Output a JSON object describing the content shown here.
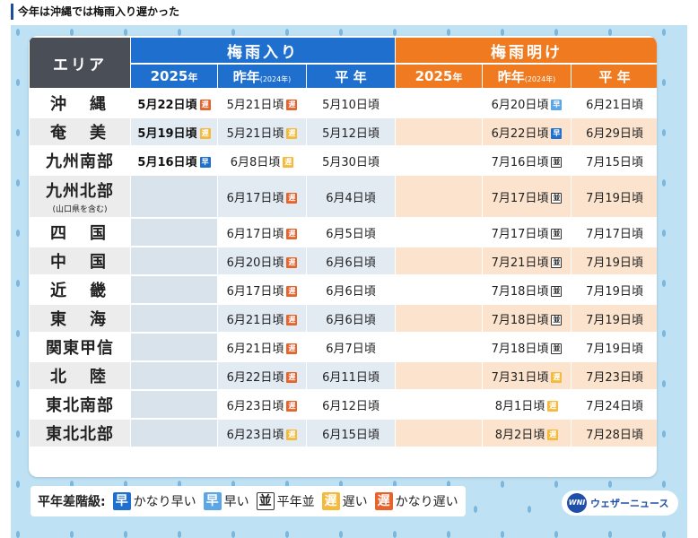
{
  "headline": "今年は沖縄では梅雨入り遅かった",
  "header": {
    "area": "エリア",
    "tsuyuiri": "梅雨入り",
    "tsuyuake": "梅雨明け",
    "y2025": "2025",
    "nen": "年",
    "sakunen": "昨年",
    "sakunen_note": "(2024年)",
    "heinen": "平 年"
  },
  "badges": {
    "haya2": "早",
    "haya": "早",
    "nami": "並",
    "oso": "遅",
    "oso2": "遅"
  },
  "colors": {
    "tsuyuiri_header": "#1f6fcf",
    "tsuyuake_header": "#f07a1f",
    "area_header": "#4a4f57",
    "much_early": "#1f6fcf",
    "early": "#5aa6e6",
    "late": "#f5b93b",
    "much_late": "#e8622b"
  },
  "rows": [
    {
      "area": "沖　縄",
      "area_sub": "",
      "iri_2025": "5月22日頃",
      "iri_2025_badge": "oso2",
      "iri_prev": "5月21日頃",
      "iri_prev_badge": "oso2",
      "iri_norm": "5月10日頃",
      "ake_2025": "",
      "ake_prev": "6月20日頃",
      "ake_prev_badge": "haya",
      "ake_norm": "6月21日頃"
    },
    {
      "area": "奄　美",
      "area_sub": "",
      "iri_2025": "5月19日頃",
      "iri_2025_badge": "oso",
      "iri_prev": "5月21日頃",
      "iri_prev_badge": "oso",
      "iri_norm": "5月12日頃",
      "ake_2025": "",
      "ake_prev": "6月22日頃",
      "ake_prev_badge": "haya2",
      "ake_norm": "6月29日頃"
    },
    {
      "area": "九州南部",
      "area_sub": "",
      "iri_2025": "5月16日頃",
      "iri_2025_badge": "haya2",
      "iri_prev": "6月8日頃",
      "iri_prev_badge": "oso",
      "iri_norm": "5月30日頃",
      "ake_2025": "",
      "ake_prev": "7月16日頃",
      "ake_prev_badge": "nami",
      "ake_norm": "7月15日頃"
    },
    {
      "area": "九州北部",
      "area_sub": "(山口県を含む)",
      "iri_2025": "",
      "iri_2025_badge": "",
      "iri_prev": "6月17日頃",
      "iri_prev_badge": "oso2",
      "iri_norm": "6月4日頃",
      "ake_2025": "",
      "ake_prev": "7月17日頃",
      "ake_prev_badge": "nami",
      "ake_norm": "7月19日頃"
    },
    {
      "area": "四　国",
      "area_sub": "",
      "iri_2025": "",
      "iri_2025_badge": "",
      "iri_prev": "6月17日頃",
      "iri_prev_badge": "oso2",
      "iri_norm": "6月5日頃",
      "ake_2025": "",
      "ake_prev": "7月17日頃",
      "ake_prev_badge": "nami",
      "ake_norm": "7月17日頃"
    },
    {
      "area": "中　国",
      "area_sub": "",
      "iri_2025": "",
      "iri_2025_badge": "",
      "iri_prev": "6月20日頃",
      "iri_prev_badge": "oso2",
      "iri_norm": "6月6日頃",
      "ake_2025": "",
      "ake_prev": "7月21日頃",
      "ake_prev_badge": "nami",
      "ake_norm": "7月19日頃"
    },
    {
      "area": "近　畿",
      "area_sub": "",
      "iri_2025": "",
      "iri_2025_badge": "",
      "iri_prev": "6月17日頃",
      "iri_prev_badge": "oso2",
      "iri_norm": "6月6日頃",
      "ake_2025": "",
      "ake_prev": "7月18日頃",
      "ake_prev_badge": "nami",
      "ake_norm": "7月19日頃"
    },
    {
      "area": "東　海",
      "area_sub": "",
      "iri_2025": "",
      "iri_2025_badge": "",
      "iri_prev": "6月21日頃",
      "iri_prev_badge": "oso2",
      "iri_norm": "6月6日頃",
      "ake_2025": "",
      "ake_prev": "7月18日頃",
      "ake_prev_badge": "nami",
      "ake_norm": "7月19日頃"
    },
    {
      "area": "関東甲信",
      "area_sub": "",
      "iri_2025": "",
      "iri_2025_badge": "",
      "iri_prev": "6月21日頃",
      "iri_prev_badge": "oso2",
      "iri_norm": "6月7日頃",
      "ake_2025": "",
      "ake_prev": "7月18日頃",
      "ake_prev_badge": "nami",
      "ake_norm": "7月19日頃"
    },
    {
      "area": "北　陸",
      "area_sub": "",
      "iri_2025": "",
      "iri_2025_badge": "",
      "iri_prev": "6月22日頃",
      "iri_prev_badge": "oso2",
      "iri_norm": "6月11日頃",
      "ake_2025": "",
      "ake_prev": "7月31日頃",
      "ake_prev_badge": "oso",
      "ake_norm": "7月23日頃"
    },
    {
      "area": "東北南部",
      "area_sub": "",
      "iri_2025": "",
      "iri_2025_badge": "",
      "iri_prev": "6月23日頃",
      "iri_prev_badge": "oso2",
      "iri_norm": "6月12日頃",
      "ake_2025": "",
      "ake_prev": "8月1日頃",
      "ake_prev_badge": "oso",
      "ake_norm": "7月24日頃"
    },
    {
      "area": "東北北部",
      "area_sub": "",
      "iri_2025": "",
      "iri_2025_badge": "",
      "iri_prev": "6月23日頃",
      "iri_prev_badge": "oso",
      "iri_norm": "6月15日頃",
      "ake_2025": "",
      "ake_prev": "8月2日頃",
      "ake_prev_badge": "oso",
      "ake_norm": "7月28日頃"
    }
  ],
  "legend": {
    "title": "平年差階級:",
    "items": [
      {
        "badge": "早",
        "cls": "haya2",
        "label": "かなり早い"
      },
      {
        "badge": "早",
        "cls": "haya",
        "label": "早い"
      },
      {
        "badge": "並",
        "cls": "nami",
        "label": "平年並"
      },
      {
        "badge": "遅",
        "cls": "oso",
        "label": "遅い"
      },
      {
        "badge": "遅",
        "cls": "oso2",
        "label": "かなり遅い"
      }
    ]
  },
  "logo": {
    "mark": "WNI",
    "text": "ウェザーニュース"
  }
}
